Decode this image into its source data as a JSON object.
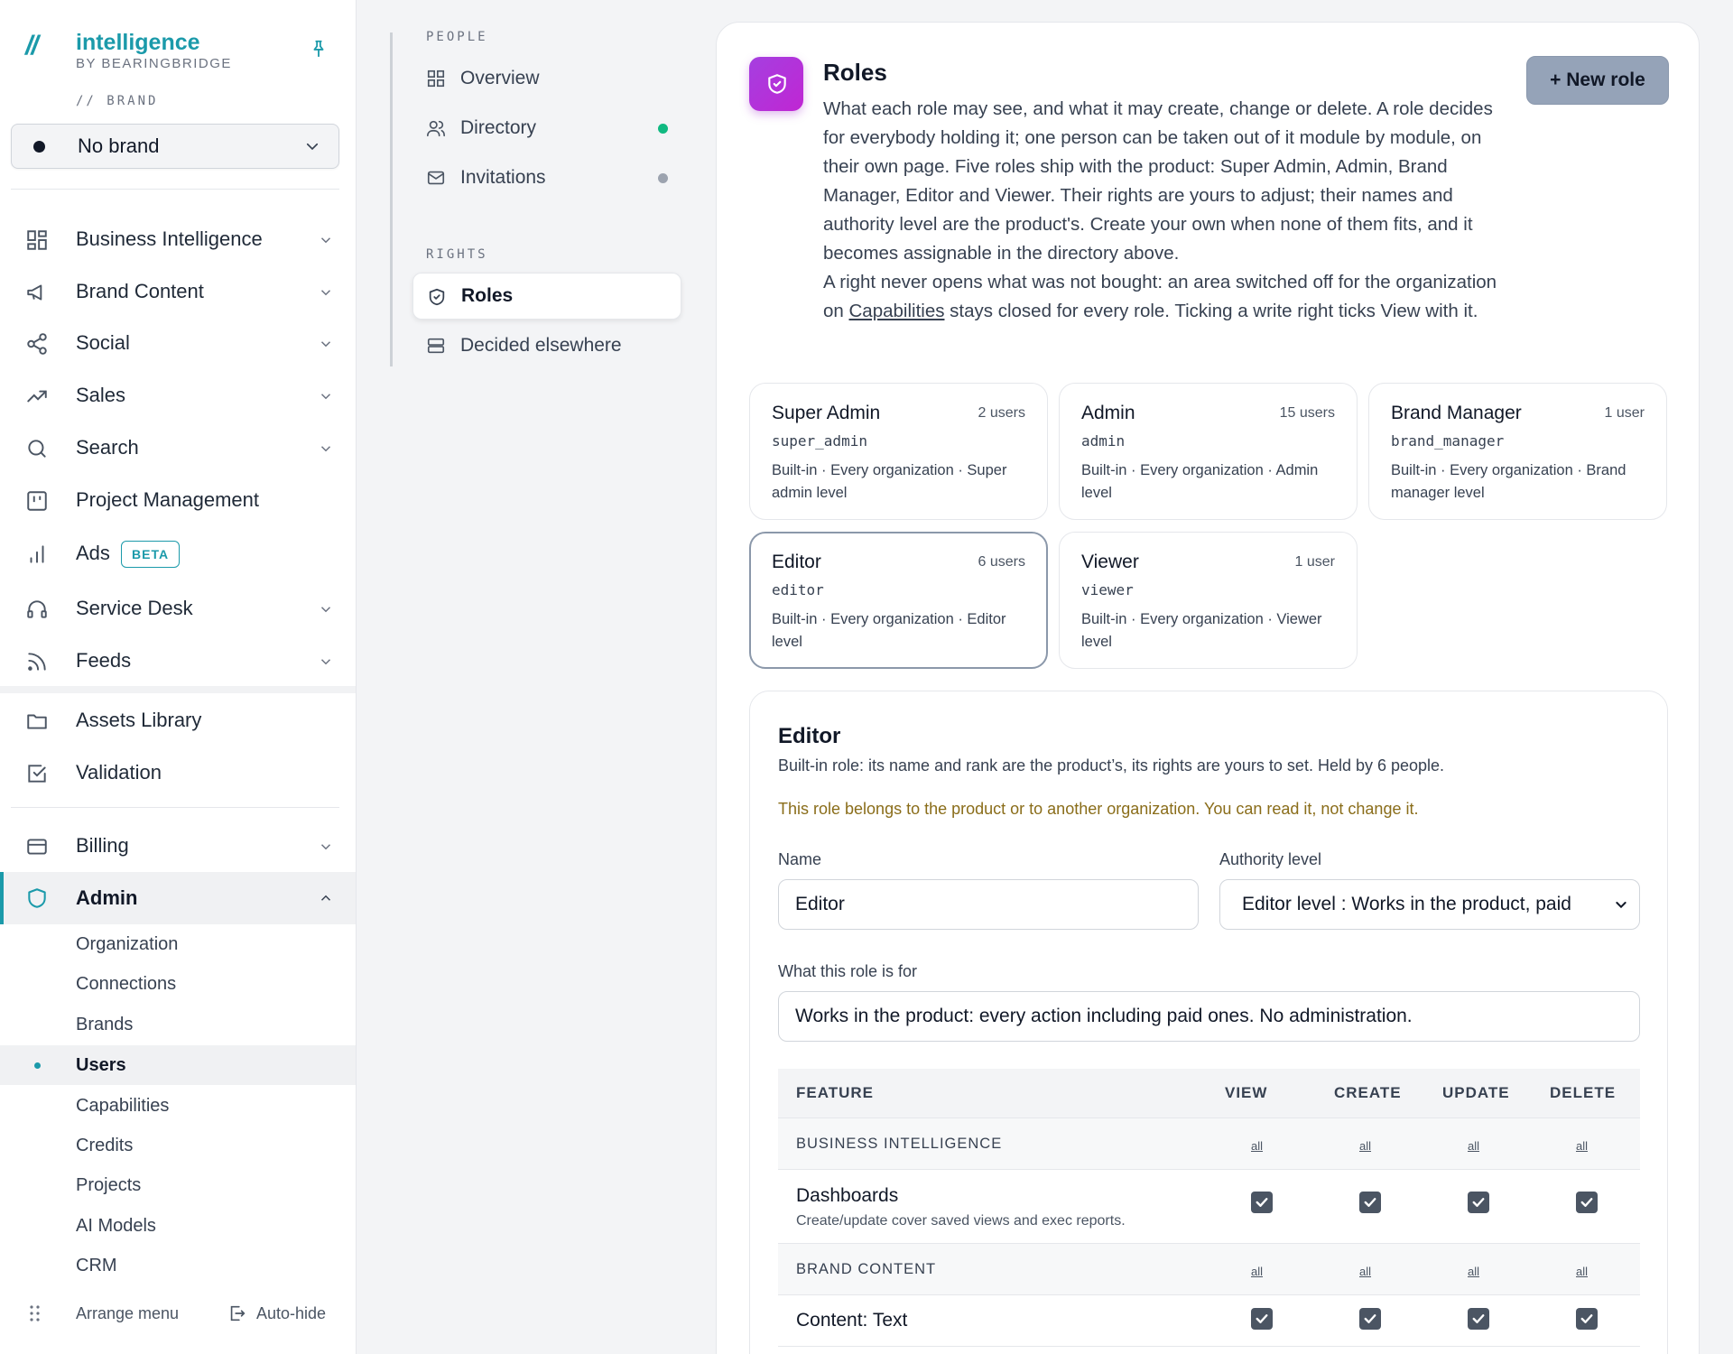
{
  "app": {
    "logo_mark": "//",
    "logo_title": "intelligence",
    "logo_sub": "BY BEARINGBRIDGE",
    "brand_label": "// BRAND",
    "brand_value": "No brand"
  },
  "nav": {
    "items": [
      {
        "label": "Business Intelligence"
      },
      {
        "label": "Brand Content"
      },
      {
        "label": "Social"
      },
      {
        "label": "Sales"
      },
      {
        "label": "Search"
      },
      {
        "label": "Project Management"
      },
      {
        "label": "Ads",
        "badge": "BETA"
      },
      {
        "label": "Service Desk"
      },
      {
        "label": "Feeds"
      },
      {
        "label": "Assets Library"
      },
      {
        "label": "Validation"
      },
      {
        "label": "Billing"
      },
      {
        "label": "Admin"
      }
    ],
    "admin_sub": [
      {
        "label": "Organization"
      },
      {
        "label": "Connections"
      },
      {
        "label": "Brands"
      },
      {
        "label": "Users"
      },
      {
        "label": "Capabilities"
      },
      {
        "label": "Credits"
      },
      {
        "label": "Projects"
      },
      {
        "label": "AI Models"
      },
      {
        "label": "CRM"
      }
    ],
    "footer": {
      "arrange": "Arrange menu",
      "autohide": "Auto-hide"
    }
  },
  "subnav": {
    "people_label": "PEOPLE",
    "rights_label": "RIGHTS",
    "items": [
      {
        "label": "Overview"
      },
      {
        "label": "Directory",
        "dot_color": "#10b981"
      },
      {
        "label": "Invitations",
        "dot_color": "#9ca3af"
      },
      {
        "label": "Roles"
      },
      {
        "label": "Decided elsewhere"
      }
    ]
  },
  "roles_page": {
    "title": "Roles",
    "description": "What each role may see, and what it may create, change or delete. A role decides for everybody holding it; one person can be taken out of it module by module, on their own page. Five roles ship with the product: Super Admin, Admin, Brand Manager, Editor and Viewer. Their rights are yours to adjust; their names and authority level are the product's. Create your own when none of them fits, and it becomes assignable in the directory above.",
    "description2_a": "A right never opens what was not bought: an area switched off for the organization on ",
    "description2_link": "Capabilities",
    "description2_b": " stays closed for every role. Ticking a write right ticks View with it.",
    "new_role_button": "+ New role",
    "accent_color": "#a53fe0",
    "cards": [
      {
        "name": "Super Admin",
        "count": "2 users",
        "key": "super_admin",
        "desc": "Built-in · Every organization · Super admin level"
      },
      {
        "name": "Admin",
        "count": "15 users",
        "key": "admin",
        "desc": "Built-in · Every organization · Admin level"
      },
      {
        "name": "Brand Manager",
        "count": "1 user",
        "key": "brand_manager",
        "desc": "Built-in · Every organization · Brand manager level"
      },
      {
        "name": "Editor",
        "count": "6 users",
        "key": "editor",
        "desc": "Built-in · Every organization · Editor level"
      },
      {
        "name": "Viewer",
        "count": "1 user",
        "key": "viewer",
        "desc": "Built-in · Every organization · Viewer level"
      }
    ]
  },
  "editor": {
    "title": "Editor",
    "subtitle": "Built-in role: its name and rank are the product’s, its rights are yours to set. Held by 6 people.",
    "warning": "This role belongs to the product or to another organization. You can read it, not change it.",
    "name_label": "Name",
    "name_value": "Editor",
    "authority_label": "Authority level",
    "authority_value": "Editor level : Works in the product, paid",
    "purpose_label": "What this role is for",
    "purpose_value": "Works in the product: every action including paid ones. No administration.",
    "table": {
      "headers": {
        "feature": "FEATURE",
        "view": "VIEW",
        "create": "CREATE",
        "update": "UPDATE",
        "delete": "DELETE"
      },
      "all_label": "all",
      "group1": "BUSINESS INTELLIGENCE",
      "row1": {
        "name": "Dashboards",
        "desc": "Create/update cover saved views and exec reports."
      },
      "group2": "BRAND CONTENT",
      "row2": {
        "name": "Content: Text"
      }
    }
  }
}
